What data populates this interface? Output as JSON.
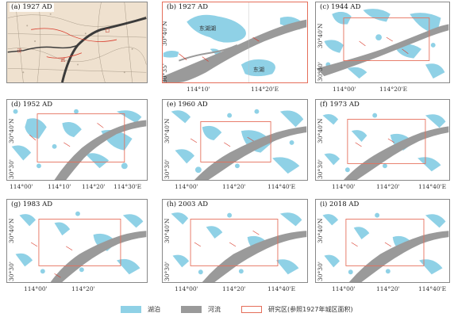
{
  "panels": [
    {
      "id": "a",
      "label": "(a) 1927 AD",
      "x_ticks": [],
      "y_ticks": []
    },
    {
      "id": "b",
      "label": "(b) 1927 AD",
      "x_ticks": [
        "114°10'",
        "114°20'E"
      ],
      "y_ticks": [
        "30°40'N",
        "30°35'"
      ],
      "lake_labels": [
        "东湖湖",
        "东湖"
      ]
    },
    {
      "id": "c",
      "label": "(c) 1944 AD",
      "x_ticks": [
        "114°00'",
        "114°20'E"
      ],
      "y_ticks": [
        "30°40'N",
        "30°30'"
      ]
    },
    {
      "id": "d",
      "label": "(d) 1952 AD",
      "x_ticks": [
        "114°00'",
        "114°10'",
        "114°20'",
        "114°30'E"
      ],
      "y_ticks": [
        "30°40'N",
        "30°30'"
      ]
    },
    {
      "id": "e",
      "label": "(e) 1960 AD",
      "x_ticks": [
        "114°00'",
        "114°20'",
        "114°40'E"
      ],
      "y_ticks": [
        "30°40'N",
        "30°30'"
      ]
    },
    {
      "id": "f",
      "label": "(f) 1973 AD",
      "x_ticks": [
        "114°00'",
        "114°20'",
        "114°40'E"
      ],
      "y_ticks": [
        "30°40'N",
        "30°30'"
      ]
    },
    {
      "id": "g",
      "label": "(g) 1983 AD",
      "x_ticks": [
        "114°00'",
        "114°20'"
      ],
      "y_ticks": [
        "30°40'N",
        "30°30'"
      ]
    },
    {
      "id": "h",
      "label": "(h) 2003 AD",
      "x_ticks": [
        "114°00'",
        "114°20'",
        "114°40'E"
      ],
      "y_ticks": [
        "30°40'N",
        "30°30'"
      ]
    },
    {
      "id": "i",
      "label": "(i) 2018 AD",
      "x_ticks": [
        "114°00'",
        "114°20'",
        "114°40'E"
      ],
      "y_ticks": [
        "30°40'N",
        "30°30'"
      ]
    }
  ],
  "legend": {
    "lake": "湖泊",
    "river": "河流",
    "study_area": "研究区(参照1927年城区面积)"
  },
  "colors": {
    "lake": "#8fd1e6",
    "river": "#9a9a9a",
    "study_area": "#e56e5a",
    "old_map": "#efe1cf"
  }
}
